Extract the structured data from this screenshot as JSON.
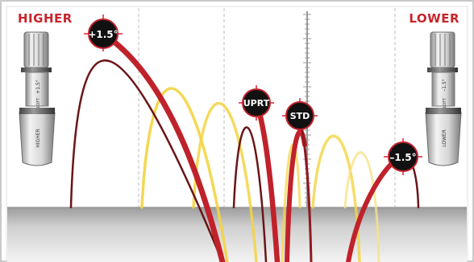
{
  "corner_labels": {
    "higher": "HIGHER",
    "lower": "LOWER"
  },
  "markers": {
    "plus": "+1.5°",
    "uprt": "UPRT",
    "std": "STD",
    "minus": "–1.5°"
  },
  "adapter": {
    "left": {
      "top": "+1.5°",
      "middle": "LOFT",
      "bottom": "HIGHER"
    },
    "right": {
      "top": "–1.5°",
      "middle": "LOFT",
      "bottom": "LOWER"
    }
  },
  "colors": {
    "label_red": "#c8242b",
    "trajectory_red": "#c0222b",
    "trajectory_dark_red": "#6b1518",
    "trajectory_yellow": "#f5d64a",
    "trajectory_light_yellow": "#f8e9a6",
    "marker_fill": "#111111",
    "crosshair": "#e02030",
    "frame_border": "#c8c8c8",
    "ground_top": "#a6a6a6",
    "ground_bottom": "#f2f2f2"
  }
}
